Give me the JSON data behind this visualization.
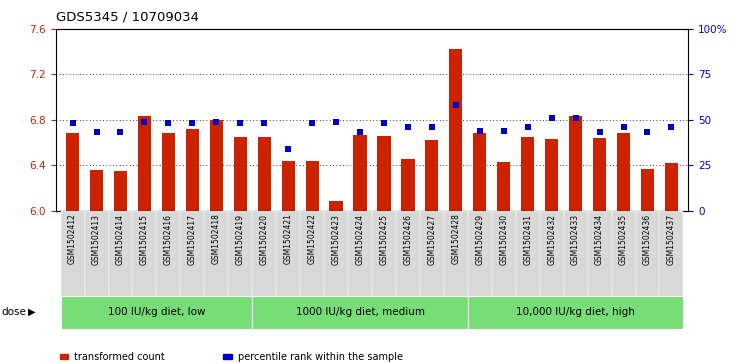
{
  "title": "GDS5345 / 10709034",
  "samples": [
    "GSM1502412",
    "GSM1502413",
    "GSM1502414",
    "GSM1502415",
    "GSM1502416",
    "GSM1502417",
    "GSM1502418",
    "GSM1502419",
    "GSM1502420",
    "GSM1502421",
    "GSM1502422",
    "GSM1502423",
    "GSM1502424",
    "GSM1502425",
    "GSM1502426",
    "GSM1502427",
    "GSM1502428",
    "GSM1502429",
    "GSM1502430",
    "GSM1502431",
    "GSM1502432",
    "GSM1502433",
    "GSM1502434",
    "GSM1502435",
    "GSM1502436",
    "GSM1502437"
  ],
  "bar_values": [
    6.68,
    6.36,
    6.35,
    6.83,
    6.68,
    6.72,
    6.8,
    6.65,
    6.65,
    6.44,
    6.44,
    6.08,
    6.67,
    6.66,
    6.45,
    6.62,
    7.42,
    6.68,
    6.43,
    6.65,
    6.63,
    6.83,
    6.64,
    6.68,
    6.37,
    6.42
  ],
  "percentile_values": [
    48,
    43,
    43,
    49,
    48,
    48,
    49,
    48,
    48,
    34,
    48,
    49,
    43,
    48,
    46,
    46,
    58,
    44,
    44,
    46,
    51,
    51,
    43,
    46,
    43,
    46
  ],
  "bar_color": "#cc2200",
  "dot_color": "#0000cc",
  "ylim_left": [
    6.0,
    7.6
  ],
  "ylim_right": [
    0,
    100
  ],
  "yticks_left": [
    6.0,
    6.4,
    6.8,
    7.2,
    7.6
  ],
  "yticks_right": [
    0,
    25,
    50,
    75,
    100
  ],
  "ytick_labels_right": [
    "0",
    "25",
    "50",
    "75",
    "100%"
  ],
  "groups": [
    {
      "label": "100 IU/kg diet, low",
      "start": 0,
      "end": 8
    },
    {
      "label": "1000 IU/kg diet, medium",
      "start": 8,
      "end": 17
    },
    {
      "label": "10,000 IU/kg diet, high",
      "start": 17,
      "end": 26
    }
  ],
  "group_color": "#77dd77",
  "dose_label": "dose",
  "legend_items": [
    {
      "color": "#cc2200",
      "label": "transformed count"
    },
    {
      "color": "#0000cc",
      "label": "percentile rank within the sample"
    }
  ],
  "bar_width": 0.55,
  "grid_color": "#000000",
  "plot_background": "#ffffff"
}
